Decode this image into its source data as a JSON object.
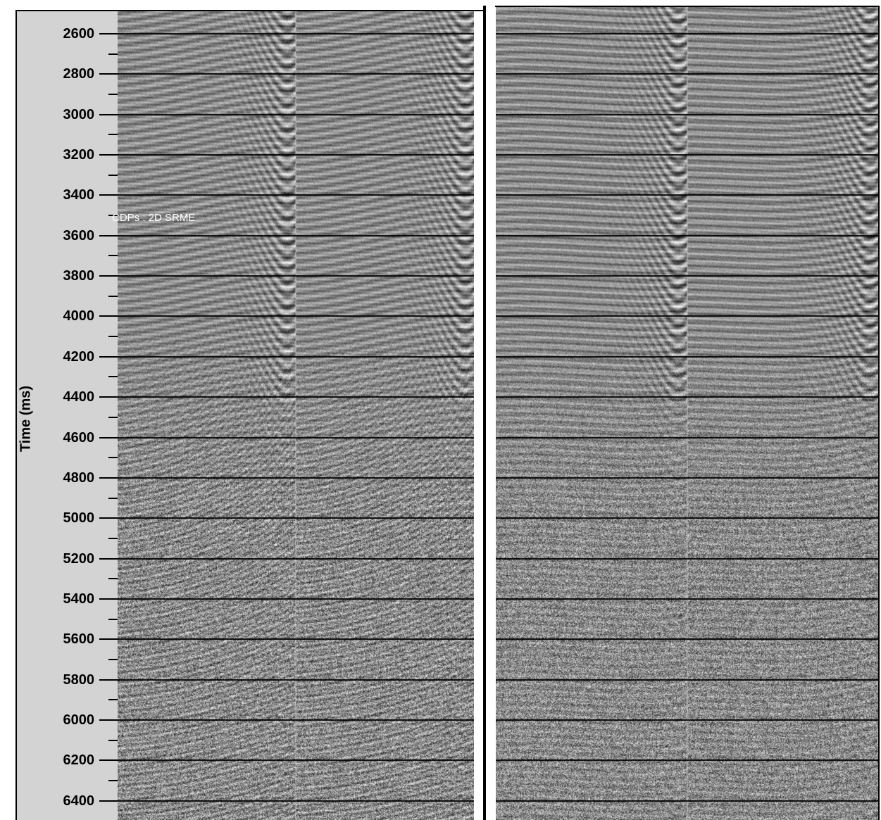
{
  "axis": {
    "title": "Time (ms)",
    "tick_labels": [
      "2600",
      "2800",
      "3000",
      "3200",
      "3400",
      "3600",
      "3800",
      "4000",
      "4200",
      "4400",
      "4600",
      "4800",
      "5000",
      "5200",
      "5400",
      "5600",
      "5800",
      "6000",
      "6200",
      "6400"
    ],
    "range_ms": [
      2530,
      6490
    ],
    "major_step_ms": 200,
    "minor_step_ms": 100
  },
  "overlay_label": "CDPs : 2D SRME",
  "panels": [
    {
      "name": "left-seismic-panel",
      "view": "input with multiples",
      "split_trace_fraction": 0.5
    },
    {
      "name": "right-seismic-panel",
      "view": "after 2D SRME",
      "split_trace_fraction": 0.5
    }
  ],
  "colors": {
    "axis_panel": "#d3d3d3",
    "border": "#000000",
    "timing_line": "#000000",
    "overlay_text": "#ffffff"
  }
}
